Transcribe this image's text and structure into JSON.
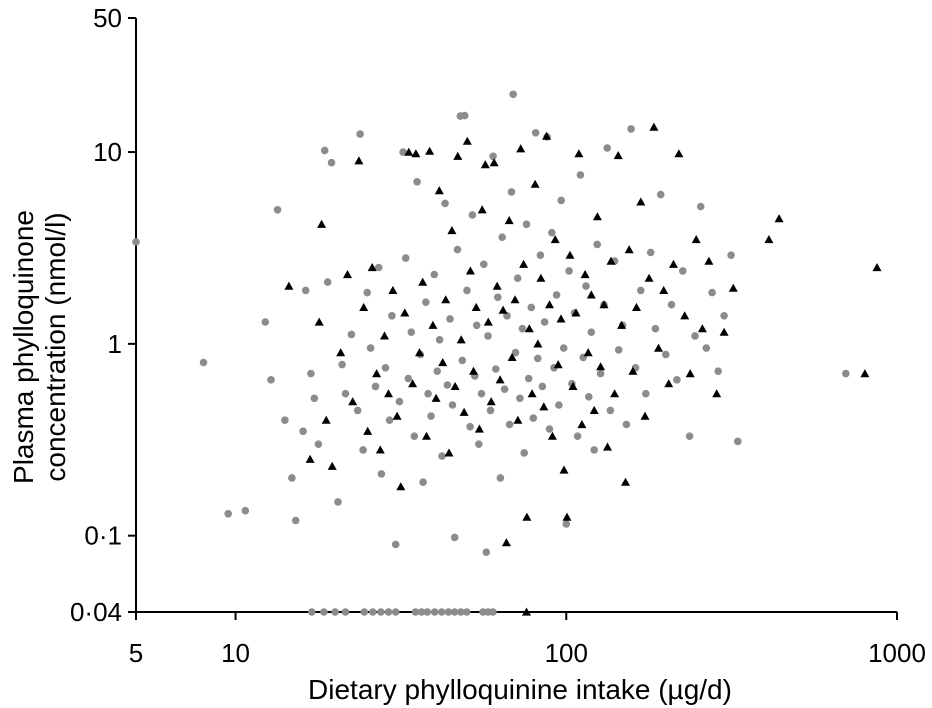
{
  "chart_data": {
    "type": "scatter",
    "title": "",
    "xlabel": "Dietary phylloquinine intake (µg/d)",
    "ylabel_lines": [
      "Plasma phylloquinone",
      "concentration (nmol/l)"
    ],
    "x_scale": "log",
    "y_scale": "log",
    "xlim": [
      5,
      1000
    ],
    "ylim": [
      0.04,
      50
    ],
    "x_ticks": [
      {
        "value": 5,
        "label": "5"
      },
      {
        "value": 10,
        "label": "10"
      },
      {
        "value": 100,
        "label": "100"
      },
      {
        "value": 1000,
        "label": "1000"
      }
    ],
    "y_ticks": [
      {
        "value": 0.04,
        "label": "0·04"
      },
      {
        "value": 0.1,
        "label": "0·1"
      },
      {
        "value": 1,
        "label": "1"
      },
      {
        "value": 10,
        "label": "10"
      },
      {
        "value": 50,
        "label": "50"
      }
    ],
    "grid": false,
    "legend": "none",
    "series": [
      {
        "marker": "circle",
        "color": "#8c8c8c",
        "points": [
          [
            5.0,
            3.4
          ],
          [
            8.0,
            0.8
          ],
          [
            9.5,
            0.13
          ],
          [
            10.7,
            0.135
          ],
          [
            12.3,
            1.3
          ],
          [
            12.8,
            0.65
          ],
          [
            13.4,
            5.0
          ],
          [
            14.1,
            0.4
          ],
          [
            14.8,
            0.2
          ],
          [
            15.2,
            0.12
          ],
          [
            16.0,
            0.35
          ],
          [
            16.3,
            1.9
          ],
          [
            16.9,
            0.7
          ],
          [
            17.3,
            0.52
          ],
          [
            17.8,
            0.3
          ],
          [
            18.6,
            10.2
          ],
          [
            19.0,
            2.1
          ],
          [
            19.5,
            8.8
          ],
          [
            20.4,
            0.15
          ],
          [
            21.0,
            0.78
          ],
          [
            21.5,
            0.55
          ],
          [
            22.4,
            1.12
          ],
          [
            23.4,
            0.45
          ],
          [
            23.8,
            12.4
          ],
          [
            24.3,
            0.28
          ],
          [
            25.0,
            1.85
          ],
          [
            25.6,
            0.95
          ],
          [
            26.5,
            0.6
          ],
          [
            27.1,
            2.5
          ],
          [
            27.6,
            0.21
          ],
          [
            28.4,
            0.75
          ],
          [
            29.2,
            0.4
          ],
          [
            29.7,
            1.4
          ],
          [
            30.5,
            0.09
          ],
          [
            31.3,
            0.5
          ],
          [
            32.1,
            10.0
          ],
          [
            32.7,
            2.8
          ],
          [
            33.3,
            0.66
          ],
          [
            34.0,
            1.15
          ],
          [
            34.7,
            0.33
          ],
          [
            35.4,
            7.0
          ],
          [
            36.2,
            0.88
          ],
          [
            36.9,
            0.19
          ],
          [
            37.6,
            1.65
          ],
          [
            38.2,
            0.55
          ],
          [
            39.0,
            0.42
          ],
          [
            39.9,
            2.3
          ],
          [
            40.7,
            0.72
          ],
          [
            41.4,
            1.05
          ],
          [
            42.1,
            0.26
          ],
          [
            43.0,
            5.4
          ],
          [
            43.7,
            0.61
          ],
          [
            44.5,
            1.35
          ],
          [
            45.3,
            0.48
          ],
          [
            46.0,
            0.098
          ],
          [
            46.9,
            3.1
          ],
          [
            47.8,
            15.4
          ],
          [
            48.5,
            0.82
          ],
          [
            49.3,
            15.5
          ],
          [
            50.1,
            1.9
          ],
          [
            51.2,
            0.37
          ],
          [
            52.0,
            4.7
          ],
          [
            52.9,
            0.68
          ],
          [
            53.6,
            1.25
          ],
          [
            54.4,
            0.3
          ],
          [
            55.4,
            0.55
          ],
          [
            56.3,
            2.6
          ],
          [
            57.3,
            0.082
          ],
          [
            58.0,
            1.1
          ],
          [
            59.0,
            0.45
          ],
          [
            60.1,
            9.5
          ],
          [
            61.2,
            0.74
          ],
          [
            62.1,
            1.75
          ],
          [
            63.2,
            0.2
          ],
          [
            64.0,
            3.6
          ],
          [
            65.1,
            0.58
          ],
          [
            66.2,
            1.4
          ],
          [
            67.4,
            0.38
          ],
          [
            68.3,
            6.2
          ],
          [
            69.1,
            20.0
          ],
          [
            70.2,
            0.9
          ],
          [
            71.3,
            2.2
          ],
          [
            72.4,
            0.52
          ],
          [
            73.7,
            1.2
          ],
          [
            74.6,
            0.27
          ],
          [
            75.8,
            4.2
          ],
          [
            77.0,
            0.66
          ],
          [
            78.4,
            1.55
          ],
          [
            79.5,
            0.41
          ],
          [
            80.8,
            12.6
          ],
          [
            82.0,
            0.84
          ],
          [
            83.5,
            2.9
          ],
          [
            84.7,
            0.6
          ],
          [
            86.0,
            1.3
          ],
          [
            87.5,
            12.0
          ],
          [
            89.0,
            0.36
          ],
          [
            90.4,
            3.8
          ],
          [
            91.8,
            0.75
          ],
          [
            93.5,
            1.8
          ],
          [
            95.0,
            0.48
          ],
          [
            96.5,
            5.6
          ],
          [
            98.2,
            0.95
          ],
          [
            100.0,
            0.115
          ],
          [
            102.0,
            2.4
          ],
          [
            104.0,
            0.62
          ],
          [
            106.0,
            1.45
          ],
          [
            108.2,
            0.33
          ],
          [
            110.3,
            7.6
          ],
          [
            112.5,
            0.85
          ],
          [
            114.7,
            2.0
          ],
          [
            117.0,
            0.53
          ],
          [
            119.0,
            1.15
          ],
          [
            121.5,
            0.28
          ],
          [
            124.0,
            3.3
          ],
          [
            127.0,
            0.7
          ],
          [
            130.0,
            1.6
          ],
          [
            133.0,
            10.5
          ],
          [
            136.0,
            0.45
          ],
          [
            140.0,
            2.7
          ],
          [
            144.0,
            0.93
          ],
          [
            148.0,
            1.25
          ],
          [
            152.0,
            0.38
          ],
          [
            157.0,
            13.2
          ],
          [
            162.0,
            0.75
          ],
          [
            168.0,
            1.9
          ],
          [
            174.0,
            0.55
          ],
          [
            180.0,
            3.0
          ],
          [
            186.0,
            1.2
          ],
          [
            193.0,
            6.0
          ],
          [
            200.0,
            0.88
          ],
          [
            208.0,
            1.6
          ],
          [
            216.0,
            0.65
          ],
          [
            225.0,
            2.4
          ],
          [
            236.0,
            0.33
          ],
          [
            245.0,
            1.1
          ],
          [
            255.0,
            5.2
          ],
          [
            265.0,
            0.95
          ],
          [
            276.0,
            1.85
          ],
          [
            288.0,
            0.72
          ],
          [
            300.0,
            1.4
          ],
          [
            315.0,
            2.9
          ],
          [
            330.0,
            0.31
          ],
          [
            700.0,
            0.7
          ],
          [
            17.0,
            0.04
          ],
          [
            18.5,
            0.04
          ],
          [
            20.0,
            0.04
          ],
          [
            21.5,
            0.04
          ],
          [
            24.5,
            0.04
          ],
          [
            26.0,
            0.04
          ],
          [
            27.5,
            0.04
          ],
          [
            29.0,
            0.04
          ],
          [
            30.5,
            0.04
          ],
          [
            35.0,
            0.04
          ],
          [
            36.5,
            0.04
          ],
          [
            38.0,
            0.04
          ],
          [
            40.0,
            0.04
          ],
          [
            42.0,
            0.04
          ],
          [
            44.0,
            0.04
          ],
          [
            46.0,
            0.04
          ],
          [
            48.0,
            0.04
          ],
          [
            50.0,
            0.04
          ],
          [
            56.0,
            0.04
          ],
          [
            58.0,
            0.04
          ],
          [
            60.0,
            0.04
          ]
        ]
      },
      {
        "marker": "triangle",
        "color": "#000000",
        "points": [
          [
            14.5,
            2.0
          ],
          [
            16.8,
            0.25
          ],
          [
            17.9,
            1.3
          ],
          [
            18.2,
            4.2
          ],
          [
            18.8,
            0.4
          ],
          [
            19.6,
            0.23
          ],
          [
            20.8,
            0.9
          ],
          [
            21.8,
            2.3
          ],
          [
            22.6,
            0.5
          ],
          [
            23.6,
            9.0
          ],
          [
            24.4,
            1.55
          ],
          [
            25.1,
            0.35
          ],
          [
            25.9,
            2.5
          ],
          [
            26.7,
            0.7
          ],
          [
            27.4,
            0.28
          ],
          [
            28.2,
            1.1
          ],
          [
            29.0,
            0.55
          ],
          [
            29.9,
            1.9
          ],
          [
            30.8,
            0.42
          ],
          [
            31.6,
            0.18
          ],
          [
            32.5,
            1.45
          ],
          [
            33.4,
            10.0
          ],
          [
            34.3,
            0.62
          ],
          [
            35.1,
            9.8
          ],
          [
            36.0,
            0.9
          ],
          [
            36.8,
            2.1
          ],
          [
            37.8,
            0.33
          ],
          [
            38.6,
            10.1
          ],
          [
            39.5,
            1.25
          ],
          [
            40.4,
            0.52
          ],
          [
            41.3,
            6.3
          ],
          [
            42.3,
            0.8
          ],
          [
            43.2,
            1.7
          ],
          [
            44.2,
            0.27
          ],
          [
            45.1,
            3.9
          ],
          [
            46.1,
            0.6
          ],
          [
            47.0,
            9.5
          ],
          [
            48.1,
            1.05
          ],
          [
            49.1,
            0.44
          ],
          [
            50.2,
            11.4
          ],
          [
            51.3,
            2.4
          ],
          [
            52.4,
            0.72
          ],
          [
            53.4,
            1.55
          ],
          [
            54.6,
            0.36
          ],
          [
            55.7,
            5.0
          ],
          [
            56.9,
            8.6
          ],
          [
            58.1,
            1.3
          ],
          [
            59.3,
            0.5
          ],
          [
            60.5,
            8.8
          ],
          [
            61.8,
            2.0
          ],
          [
            63.1,
            0.65
          ],
          [
            64.4,
            1.5
          ],
          [
            65.9,
            0.092
          ],
          [
            67.2,
            4.4
          ],
          [
            68.6,
            0.85
          ],
          [
            70.0,
            1.7
          ],
          [
            71.4,
            0.4
          ],
          [
            72.8,
            10.4
          ],
          [
            74.3,
            2.6
          ],
          [
            75.8,
            0.04
          ],
          [
            76.0,
            0.125
          ],
          [
            77.3,
            1.2
          ],
          [
            78.8,
            0.55
          ],
          [
            80.5,
            6.8
          ],
          [
            82.1,
            1.0
          ],
          [
            83.8,
            2.2
          ],
          [
            85.5,
            0.47
          ],
          [
            87.2,
            12.1
          ],
          [
            89.0,
            1.6
          ],
          [
            90.8,
            0.33
          ],
          [
            92.6,
            3.5
          ],
          [
            94.5,
            0.78
          ],
          [
            96.4,
            1.35
          ],
          [
            98.4,
            0.22
          ],
          [
            100.5,
            0.125
          ],
          [
            102.6,
            2.9
          ],
          [
            104.8,
            0.6
          ],
          [
            107.0,
            1.45
          ],
          [
            109.2,
            9.8
          ],
          [
            111.5,
            0.38
          ],
          [
            114.0,
            2.3
          ],
          [
            116.5,
            0.9
          ],
          [
            119.0,
            1.8
          ],
          [
            121.5,
            0.45
          ],
          [
            124.2,
            4.6
          ],
          [
            127.0,
            0.76
          ],
          [
            130.0,
            1.6
          ],
          [
            133.2,
            0.29
          ],
          [
            136.5,
            2.7
          ],
          [
            140.0,
            0.55
          ],
          [
            143.5,
            9.6
          ],
          [
            147.0,
            1.25
          ],
          [
            151.0,
            0.19
          ],
          [
            155.0,
            3.1
          ],
          [
            159.0,
            0.72
          ],
          [
            163.0,
            1.55
          ],
          [
            168.0,
            5.5
          ],
          [
            173.0,
            0.42
          ],
          [
            178.0,
            2.2
          ],
          [
            184.0,
            13.5
          ],
          [
            190.0,
            0.95
          ],
          [
            197.0,
            1.9
          ],
          [
            204.0,
            0.62
          ],
          [
            211.0,
            2.6
          ],
          [
            219.0,
            9.8
          ],
          [
            228.0,
            1.4
          ],
          [
            237.0,
            0.7
          ],
          [
            247.0,
            3.5
          ],
          [
            258.0,
            1.2
          ],
          [
            270.0,
            2.7
          ],
          [
            285.0,
            0.55
          ],
          [
            300.0,
            1.15
          ],
          [
            320.0,
            1.95
          ],
          [
            410.0,
            3.5
          ],
          [
            440.0,
            4.5
          ],
          [
            800.0,
            0.7
          ],
          [
            870.0,
            2.5
          ]
        ]
      }
    ]
  }
}
